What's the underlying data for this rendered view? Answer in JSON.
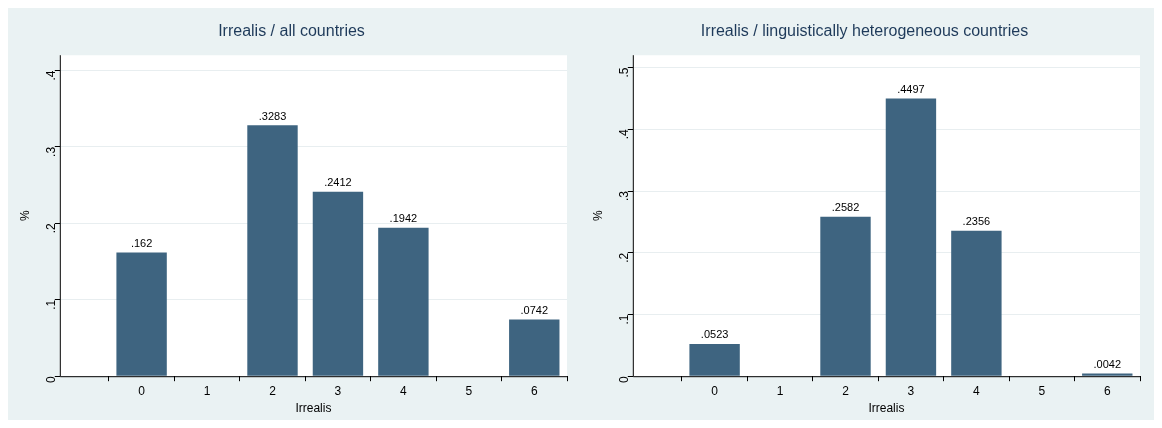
{
  "chart_data": [
    {
      "type": "bar",
      "title": "Irrealis / all countries",
      "xlabel": "Irrealis",
      "ylabel": "%",
      "x": [
        0,
        2,
        3,
        4,
        6
      ],
      "color": "#3e6480",
      "values": [
        0.162,
        0.3283,
        0.2412,
        0.1942,
        0.0742
      ],
      "value_labels": [
        ".162",
        ".3283",
        ".2412",
        ".1942",
        ".0742"
      ],
      "xlim": [
        -1.25,
        6.5
      ],
      "xticks": [
        0,
        1,
        2,
        3,
        4,
        5,
        6
      ],
      "ylim": [
        0,
        0.42
      ],
      "yticks": [
        {
          "value": 0,
          "label": "0"
        },
        {
          "value": 0.1,
          "label": ".1"
        },
        {
          "value": 0.2,
          "label": ".2"
        },
        {
          "value": 0.3,
          "label": ".3"
        },
        {
          "value": 0.4,
          "label": ".4"
        }
      ],
      "grid": "y",
      "legend": false
    },
    {
      "type": "bar",
      "title": "Irrealis / linguistically heterogeneous countries",
      "xlabel": "Irrealis",
      "ylabel": "%",
      "x": [
        0,
        2,
        3,
        4,
        6
      ],
      "color": "#3e6480",
      "values": [
        0.0523,
        0.2582,
        0.4497,
        0.2356,
        0.0042
      ],
      "value_labels": [
        ".0523",
        ".2582",
        ".4497",
        ".2356",
        ".0042"
      ],
      "xlim": [
        -1.25,
        6.5
      ],
      "xticks": [
        0,
        1,
        2,
        3,
        4,
        5,
        6
      ],
      "ylim": [
        0,
        0.52
      ],
      "yticks": [
        {
          "value": 0,
          "label": "0"
        },
        {
          "value": 0.1,
          "label": ".1"
        },
        {
          "value": 0.2,
          "label": ".2"
        },
        {
          "value": 0.3,
          "label": ".3"
        },
        {
          "value": 0.4,
          "label": ".4"
        },
        {
          "value": 0.5,
          "label": ".5"
        }
      ],
      "grid": "y",
      "legend": false
    }
  ]
}
